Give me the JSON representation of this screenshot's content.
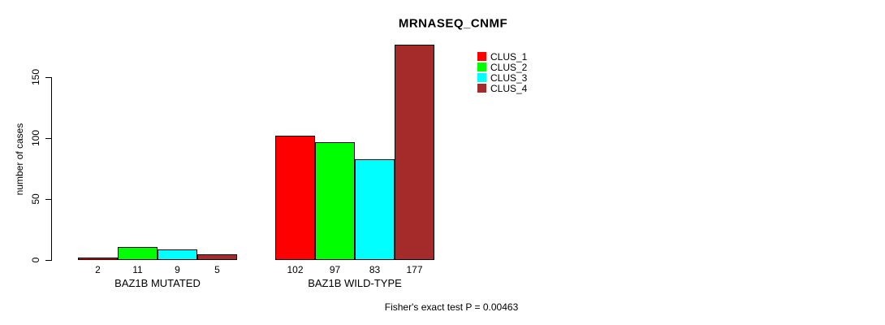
{
  "chart": {
    "title": "MRNASEQ_CNMF",
    "ylabel": "number of cases",
    "footer": "Fisher's exact test P = 0.00463"
  },
  "chart_data": {
    "type": "bar",
    "title": "MRNASEQ_CNMF",
    "xlabel": "",
    "ylabel": "number of cases",
    "categories": [
      "BAZ1B MUTATED",
      "BAZ1B WILD-TYPE"
    ],
    "series": [
      {
        "name": "CLUS_1",
        "color": "#ff0000",
        "values": [
          2,
          102
        ]
      },
      {
        "name": "CLUS_2",
        "color": "#00ff00",
        "values": [
          11,
          97
        ]
      },
      {
        "name": "CLUS_3",
        "color": "#00ffff",
        "values": [
          9,
          83
        ]
      },
      {
        "name": "CLUS_4",
        "color": "#a52a2a",
        "values": [
          5,
          177
        ]
      }
    ],
    "bar_value_labels": [
      [
        2,
        11,
        9,
        5
      ],
      [
        102,
        97,
        83,
        177
      ]
    ],
    "yticks": [
      0,
      50,
      100,
      150
    ],
    "ylim": [
      0,
      180
    ],
    "grid": false,
    "legend_position": "top-right",
    "legend": [
      "CLUS_1",
      "CLUS_2",
      "CLUS_3",
      "CLUS_4"
    ],
    "annotation": "Fisher's exact test P = 0.00463",
    "bar_border_color": "#000000"
  }
}
